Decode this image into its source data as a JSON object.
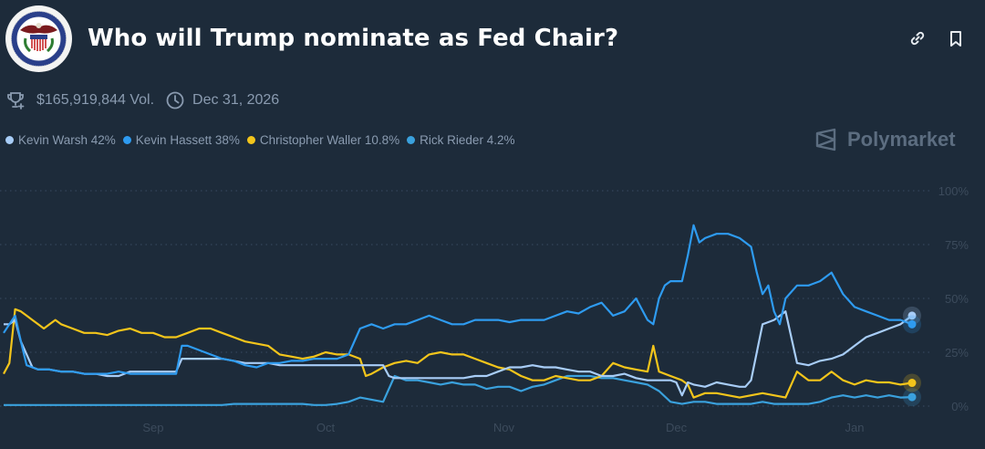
{
  "header": {
    "title": "Who will Trump nominate as Fed Chair?",
    "logo_alt": "Board of Governors of the Federal Reserve System seal",
    "volume": "$165,919,844 Vol.",
    "end_date": "Dec 31, 2026",
    "icons": {
      "link": "link-icon",
      "bookmark": "bookmark-icon",
      "trophy": "trophy-icon",
      "clock": "clock-icon"
    }
  },
  "brand": {
    "name": "Polymarket"
  },
  "legend": [
    {
      "label": "Kevin Warsh 42%",
      "color": "#a8cdf7"
    },
    {
      "label": "Kevin Hassett 38%",
      "color": "#2e9bf0"
    },
    {
      "label": "Christopher Waller 10.8%",
      "color": "#f3c51b"
    },
    {
      "label": "Rick Rieder 4.2%",
      "color": "#3aa1dd"
    }
  ],
  "chart_data": {
    "type": "line",
    "title": "Who will Trump nominate as Fed Chair?",
    "xlabel": "",
    "ylabel": "",
    "x_unit": "days since Aug 6",
    "xlim": [
      0,
      158
    ],
    "ylim": [
      0,
      100
    ],
    "x_ticks": [
      {
        "label": "Sep",
        "x": 26
      },
      {
        "label": "Oct",
        "x": 56
      },
      {
        "label": "Nov",
        "x": 87
      },
      {
        "label": "Dec",
        "x": 117
      },
      {
        "label": "Jan",
        "x": 148
      }
    ],
    "y_ticks": [
      {
        "label": "100%",
        "y": 100
      },
      {
        "label": "75%",
        "y": 75
      },
      {
        "label": "50%",
        "y": 50
      },
      {
        "label": "25%",
        "y": 25
      },
      {
        "label": "0%",
        "y": 0
      }
    ],
    "grid": true,
    "legend_position": "top-left",
    "series": [
      {
        "name": "Kevin Warsh",
        "color": "#a8cdf7",
        "x": [
          0,
          1,
          2,
          3,
          5,
          6,
          8,
          10,
          12,
          14,
          16,
          18,
          20,
          22,
          24,
          26,
          28,
          30,
          31,
          32,
          34,
          36,
          38,
          40,
          42,
          44,
          46,
          48,
          50,
          52,
          54,
          56,
          58,
          60,
          62,
          64,
          66,
          67,
          68,
          70,
          72,
          74,
          76,
          78,
          80,
          82,
          84,
          86,
          88,
          90,
          92,
          94,
          96,
          98,
          100,
          102,
          104,
          106,
          108,
          110,
          112,
          114,
          116,
          117,
          118,
          119,
          120,
          122,
          124,
          126,
          128,
          129,
          130,
          131,
          132,
          133,
          134,
          136,
          138,
          140,
          142,
          144,
          146,
          148,
          150,
          152,
          154,
          156,
          158
        ],
        "y": [
          38,
          38,
          40,
          30,
          18,
          17,
          17,
          16,
          16,
          15,
          15,
          14,
          14,
          16,
          16,
          16,
          16,
          16,
          22,
          22,
          22,
          22,
          22,
          21,
          20,
          20,
          20,
          19,
          19,
          19,
          19,
          19,
          19,
          19,
          19,
          19,
          19,
          14,
          13,
          13,
          13,
          13,
          13,
          13,
          13,
          14,
          14,
          16,
          18,
          18,
          19,
          18,
          18,
          17,
          16,
          16,
          14,
          14,
          15,
          13,
          12,
          12,
          12,
          11,
          5,
          11,
          10,
          9,
          11,
          10,
          9,
          9,
          12,
          25,
          38,
          39,
          40,
          44,
          20,
          19,
          21,
          22,
          24,
          28,
          32,
          34,
          36,
          38,
          42
        ]
      },
      {
        "name": "Kevin Hassett",
        "color": "#2e9bf0",
        "x": [
          0,
          1,
          2,
          3,
          4,
          5,
          6,
          8,
          10,
          12,
          14,
          16,
          18,
          20,
          22,
          24,
          26,
          28,
          30,
          31,
          32,
          34,
          36,
          38,
          40,
          42,
          44,
          46,
          48,
          50,
          52,
          54,
          56,
          58,
          60,
          62,
          64,
          66,
          68,
          70,
          72,
          74,
          76,
          78,
          80,
          82,
          84,
          86,
          88,
          90,
          92,
          94,
          96,
          98,
          100,
          102,
          104,
          106,
          108,
          110,
          112,
          113,
          114,
          115,
          116,
          118,
          119,
          120,
          121,
          122,
          124,
          126,
          128,
          130,
          131,
          132,
          133,
          134,
          135,
          136,
          138,
          140,
          142,
          144,
          146,
          148,
          150,
          152,
          154,
          156,
          158
        ],
        "y": [
          34,
          38,
          42,
          30,
          19,
          18,
          17,
          17,
          16,
          16,
          15,
          15,
          15,
          16,
          15,
          15,
          15,
          15,
          15,
          28,
          28,
          26,
          24,
          22,
          21,
          19,
          18,
          20,
          20,
          21,
          21,
          22,
          22,
          22,
          24,
          36,
          38,
          36,
          38,
          38,
          40,
          42,
          40,
          38,
          38,
          40,
          40,
          40,
          39,
          40,
          40,
          40,
          42,
          44,
          43,
          46,
          48,
          42,
          44,
          50,
          40,
          38,
          50,
          56,
          58,
          58,
          70,
          84,
          76,
          78,
          80,
          80,
          78,
          74,
          62,
          52,
          56,
          44,
          38,
          50,
          56,
          56,
          58,
          62,
          52,
          46,
          44,
          42,
          40,
          40,
          38
        ]
      },
      {
        "name": "Christopher Waller",
        "color": "#f3c51b",
        "x": [
          0,
          1,
          2,
          3,
          4,
          5,
          6,
          7,
          8,
          9,
          10,
          12,
          14,
          16,
          18,
          20,
          22,
          24,
          26,
          28,
          30,
          32,
          34,
          36,
          38,
          40,
          42,
          44,
          46,
          48,
          50,
          52,
          54,
          56,
          58,
          60,
          62,
          63,
          64,
          66,
          68,
          70,
          72,
          74,
          76,
          78,
          80,
          82,
          84,
          86,
          88,
          90,
          92,
          94,
          96,
          98,
          100,
          102,
          104,
          106,
          108,
          110,
          112,
          113,
          114,
          116,
          118,
          119,
          120,
          122,
          124,
          126,
          128,
          130,
          132,
          134,
          136,
          138,
          140,
          142,
          144,
          146,
          148,
          150,
          152,
          154,
          156,
          158
        ],
        "y": [
          15,
          20,
          45,
          44,
          42,
          40,
          38,
          36,
          38,
          40,
          38,
          36,
          34,
          34,
          33,
          35,
          36,
          34,
          34,
          32,
          32,
          34,
          36,
          36,
          34,
          32,
          30,
          29,
          28,
          24,
          23,
          22,
          23,
          25,
          24,
          24,
          22,
          14,
          15,
          18,
          20,
          21,
          20,
          24,
          25,
          24,
          24,
          22,
          20,
          18,
          17,
          14,
          12,
          12,
          14,
          13,
          12,
          12,
          14,
          20,
          18,
          17,
          16,
          28,
          16,
          14,
          12,
          10,
          4,
          6,
          6,
          5,
          4,
          5,
          6,
          5,
          4,
          16,
          12,
          12,
          16,
          12,
          10,
          12,
          11,
          11,
          10,
          10.8
        ]
      },
      {
        "name": "Rick Rieder",
        "color": "#3aa1dd",
        "x": [
          0,
          3,
          6,
          10,
          14,
          18,
          20,
          22,
          24,
          26,
          28,
          30,
          32,
          34,
          36,
          38,
          40,
          42,
          44,
          46,
          48,
          50,
          52,
          54,
          56,
          58,
          60,
          62,
          64,
          66,
          68,
          70,
          72,
          74,
          76,
          78,
          80,
          82,
          84,
          86,
          88,
          90,
          92,
          94,
          96,
          98,
          100,
          102,
          104,
          106,
          108,
          110,
          112,
          114,
          116,
          118,
          120,
          122,
          124,
          126,
          128,
          130,
          132,
          134,
          136,
          138,
          140,
          142,
          144,
          146,
          148,
          150,
          152,
          154,
          156,
          158
        ],
        "y": [
          0.5,
          0.5,
          0.5,
          0.5,
          0.5,
          0.5,
          0.5,
          0.5,
          0.5,
          0.5,
          0.5,
          0.5,
          0.5,
          0.5,
          0.5,
          0.5,
          1,
          1,
          1,
          1,
          1,
          1,
          1,
          0.5,
          0.5,
          1,
          2,
          4,
          3,
          2,
          14,
          12,
          12,
          11,
          10,
          11,
          10,
          10,
          8,
          9,
          9,
          7,
          9,
          10,
          12,
          14,
          14,
          14,
          13,
          13,
          12,
          11,
          10,
          7,
          2,
          1,
          2,
          2,
          1,
          1,
          1,
          1,
          2,
          1,
          1,
          1,
          1,
          2,
          4,
          5,
          4,
          5,
          4,
          5,
          4,
          4.2
        ]
      }
    ]
  }
}
